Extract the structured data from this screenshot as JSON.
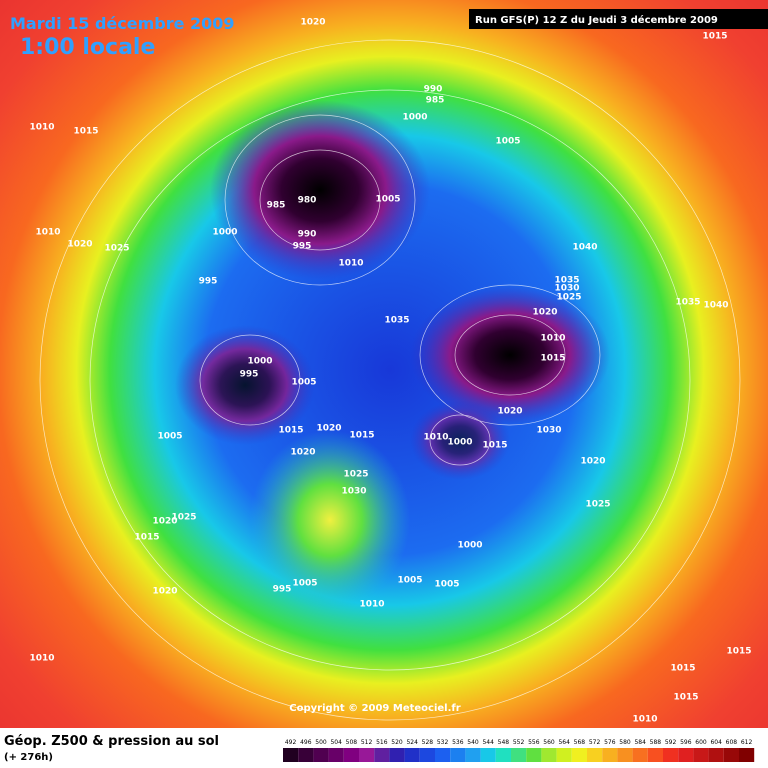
{
  "header": {
    "title": "Mardi 15 décembre 2009",
    "time": "1:00 locale",
    "run": "Run GFS(P) 12 Z du Jeudi 3 décembre 2009"
  },
  "copyright": "Copyright © 2009 Meteociel.fr",
  "legend": {
    "title": "Géop. Z500 & pression au sol",
    "lead": "(+ 276h)",
    "scale": [
      492,
      496,
      500,
      504,
      508,
      512,
      516,
      520,
      524,
      528,
      532,
      536,
      540,
      544,
      548,
      552,
      556,
      560,
      564,
      568,
      572,
      576,
      580,
      584,
      588,
      592,
      596,
      600,
      604,
      608,
      612
    ]
  },
  "isobars": [
    "1020",
    "1015",
    "1010",
    "1015",
    "990",
    "985",
    "1000",
    "1010",
    "1020",
    "1025",
    "995",
    "985",
    "980",
    "1000",
    "990",
    "995",
    "1005",
    "1010",
    "1035",
    "1005",
    "1040",
    "1035",
    "1030",
    "1025",
    "1020",
    "1010",
    "1015",
    "1035",
    "1040",
    "1000",
    "995",
    "1005",
    "1015",
    "1020",
    "1015",
    "1020",
    "1005",
    "1025",
    "1030",
    "1010",
    "1000",
    "1015",
    "1020",
    "1030",
    "1020",
    "1025",
    "1020",
    "1025",
    "1015",
    "1000",
    "1005",
    "1005",
    "995",
    "1005",
    "1010",
    "1020",
    "1010",
    "1015",
    "1015",
    "1015",
    "1010"
  ]
}
